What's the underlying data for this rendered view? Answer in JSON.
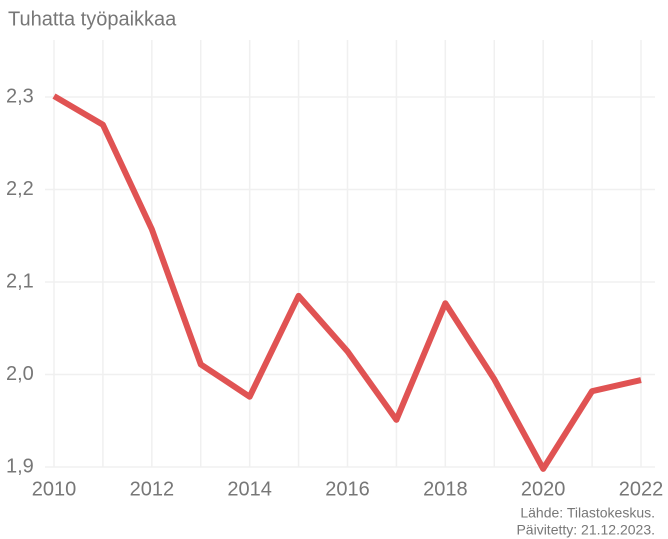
{
  "chart_data": {
    "type": "line",
    "title": "Tuhatta työpaikkaa",
    "x": [
      2010,
      2011,
      2012,
      2013,
      2014,
      2015,
      2016,
      2017,
      2018,
      2019,
      2020,
      2021,
      2022
    ],
    "series": [
      {
        "name": "Tuhatta työpaikkaa",
        "color": "#e05353",
        "values": [
          2.301,
          2.27,
          2.157,
          2.011,
          1.976,
          2.085,
          2.025,
          1.951,
          2.077,
          1.995,
          1.898,
          1.982,
          1.994
        ]
      }
    ],
    "xlim": [
      2010,
      2022
    ],
    "xticks": [
      2010,
      2012,
      2014,
      2016,
      2018,
      2020,
      2022
    ],
    "ylim": [
      1.9,
      2.3
    ],
    "yticks": [
      {
        "value": 1.9,
        "label": "1,9"
      },
      {
        "value": 2.0,
        "label": "2,0"
      },
      {
        "value": 2.1,
        "label": "2,1"
      },
      {
        "value": 2.2,
        "label": "2,2"
      },
      {
        "value": 2.3,
        "label": "2,3"
      }
    ],
    "grid": true,
    "source": [
      "Lähde: Tilastokeskus.",
      "Päivitetty: 21.12.2023."
    ]
  }
}
